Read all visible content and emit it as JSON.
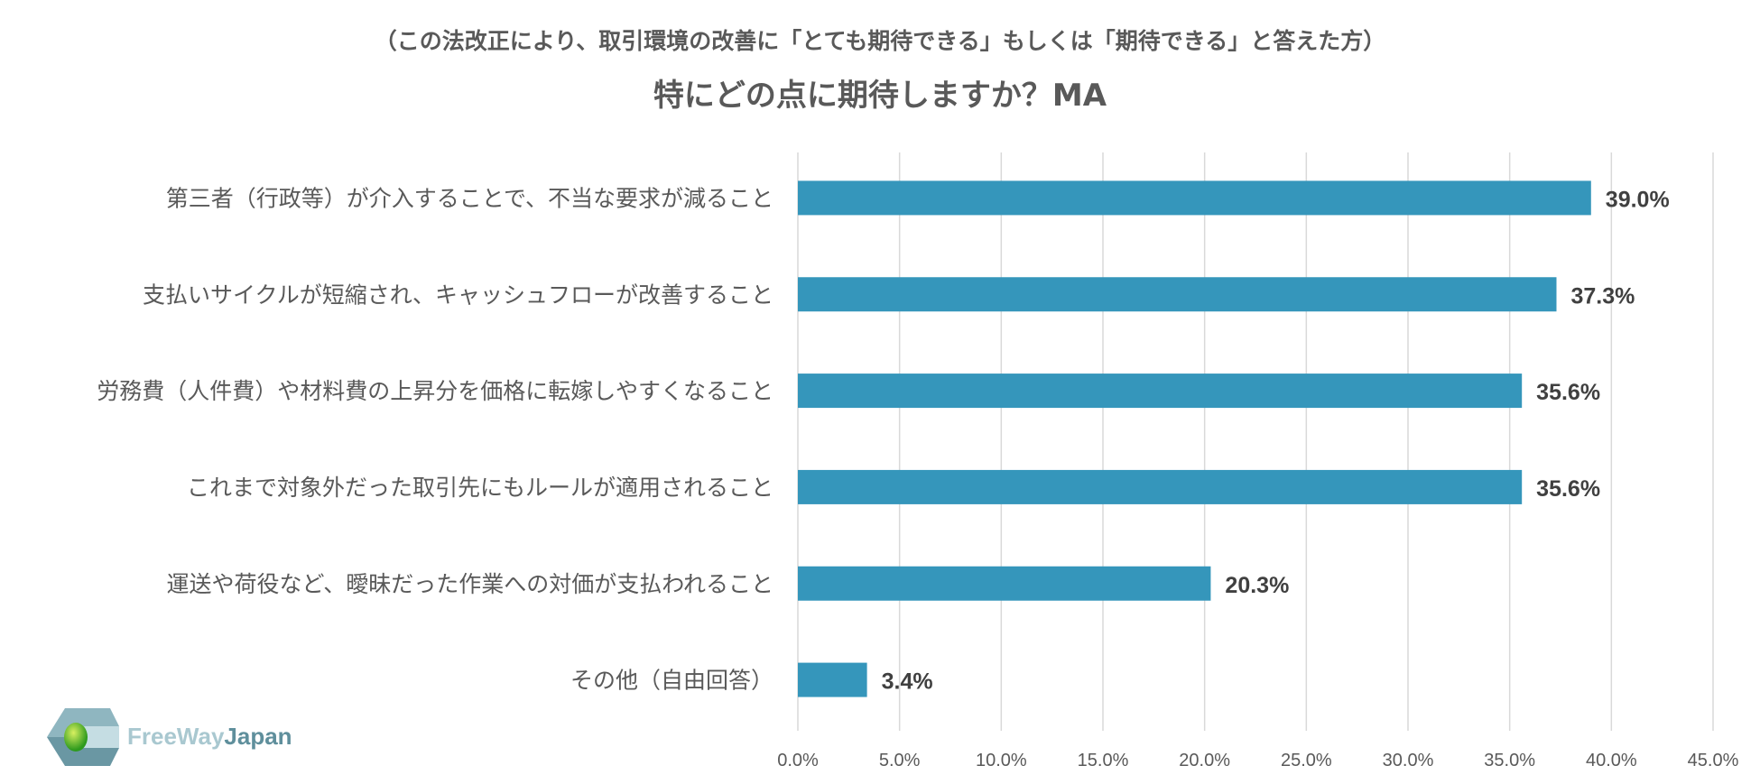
{
  "chart_data": {
    "type": "bar",
    "orientation": "horizontal",
    "subtitle": "（この法改正により、取引環境の改善に「とても期待できる」もしくは「期待できる」と答えた方）",
    "title": "特にどの点に期待しますか？MA",
    "categories": [
      "第三者（行政等）が介入することで、不当な要求が減ること",
      "支払いサイクルが短縮され、キャッシュフローが改善すること",
      "労務費（人件費）や材料費の上昇分を価格に転嫁しやすくなること",
      "これまで対象外だった取引先にもルールが適用されること",
      "運送や荷役など、曖昧だった作業への対価が支払われること",
      "その他（自由回答）"
    ],
    "values": [
      39.0,
      37.3,
      35.6,
      35.6,
      20.3,
      3.4
    ],
    "data_labels": [
      "39.0%",
      "37.3%",
      "35.6%",
      "35.6%",
      "20.3%",
      "3.4%"
    ],
    "xlim": [
      0,
      45
    ],
    "xticks": [
      "0.0%",
      "5.0%",
      "10.0%",
      "15.0%",
      "20.0%",
      "25.0%",
      "30.0%",
      "35.0%",
      "40.0%",
      "45.0%"
    ],
    "grid": true,
    "legend": "none",
    "bar_color": "#3596bb"
  },
  "logo": {
    "text_a": "FreeWay",
    "text_b": "Japan"
  }
}
